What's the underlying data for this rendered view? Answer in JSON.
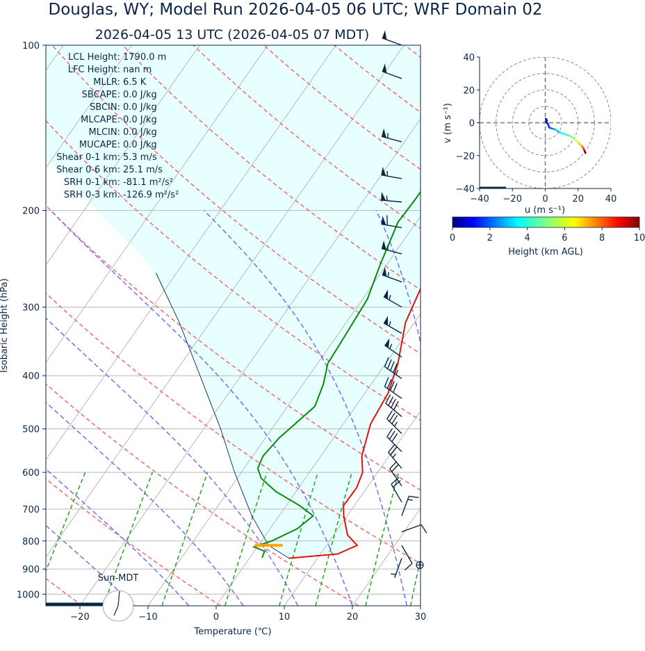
{
  "title": "Douglas, WY; Model Run 2026-04-05 06 UTC; WRF Domain 02",
  "subtitle": "2026-04-05 13 UTC  (2026-04-05 07 MDT)",
  "stats": [
    {
      "label": "LCL Height:",
      "value": "1790.0 m"
    },
    {
      "label": "LFC Height:",
      "value": "nan m"
    },
    {
      "label": "MLLR:",
      "value": "6.5 K"
    },
    {
      "label": "SBCAPE:",
      "value": "0.0 J/kg"
    },
    {
      "label": "SBCIN:",
      "value": "0.0 J/kg"
    },
    {
      "label": "MLCAPE:",
      "value": "0.0 J/kg"
    },
    {
      "label": "MLCIN:",
      "value": "0.0 J/kg"
    },
    {
      "label": "MUCAPE:",
      "value": "0.0 J/kg"
    },
    {
      "label": "Shear 0-1 km:",
      "value": "5.3 m/s"
    },
    {
      "label": "Shear 0-6 km:",
      "value": "25.1 m/s"
    },
    {
      "label": "SRH 0-1 km:",
      "value": "-81.1 m²/s²"
    },
    {
      "label": "SRH 0-3 km:",
      "value": "-126.9 m²/s²"
    }
  ],
  "sun_label": "Sun-MDT",
  "colors": {
    "temperature": "#e8100a",
    "dewpoint": "#0a8a0a",
    "parcel": "#0b2545",
    "dry_adiabat": "#f06a6a",
    "moist_adiabat": "#7070f0",
    "mixing_ratio": "#22a022",
    "isotherm": "#b8b8b8",
    "cape_fill": "#e8ffff",
    "lcl_marker": "#ffa500",
    "barb": "#0b2545"
  },
  "chart_data": [
    {
      "type": "line",
      "name": "skew-t",
      "xlabel": "Temperature (℃)",
      "ylabel": "Isobaric Height (hPa)",
      "xlim": [
        -25,
        30
      ],
      "ylim": [
        1050,
        100
      ],
      "x_ticks": [
        -20,
        -10,
        0,
        10,
        20,
        30
      ],
      "y_ticks": [
        100,
        200,
        300,
        400,
        500,
        600,
        700,
        800,
        900,
        1000
      ],
      "series": [
        {
          "key": "temperature",
          "points": [
            [
              860,
              5.8
            ],
            [
              845,
              12.5
            ],
            [
              815,
              14.5
            ],
            [
              780,
              12.0
            ],
            [
              720,
              9.5
            ],
            [
              690,
              8.4
            ],
            [
              640,
              8.5
            ],
            [
              600,
              7.8
            ],
            [
              560,
              6.0
            ],
            [
              490,
              4.0
            ],
            [
              430,
              3.4
            ],
            [
              380,
              1.8
            ],
            [
              320,
              -1.3
            ],
            [
              270,
              -2.8
            ],
            [
              245,
              -4.0
            ],
            [
              225,
              -6.2
            ],
            [
              210,
              -6.6
            ],
            [
              185,
              0.8
            ],
            [
              165,
              12.0
            ],
            [
              145,
              21.5
            ],
            [
              112,
              24.0
            ],
            [
              100,
              26.0
            ]
          ]
        },
        {
          "key": "dewpoint",
          "points": [
            [
              858,
              1.8
            ],
            [
              835,
              1.5
            ],
            [
              820,
              -0.5
            ],
            [
              800,
              1.5
            ],
            [
              760,
              4.0
            ],
            [
              720,
              5.0
            ],
            [
              690,
              2.0
            ],
            [
              650,
              -3.0
            ],
            [
              615,
              -6.5
            ],
            [
              590,
              -8.0
            ],
            [
              560,
              -8.5
            ],
            [
              520,
              -8.0
            ],
            [
              455,
              -6.0
            ],
            [
              415,
              -7.0
            ],
            [
              380,
              -8.5
            ],
            [
              340,
              -8.8
            ],
            [
              290,
              -9.3
            ],
            [
              250,
              -11.0
            ],
            [
              210,
              -12.7
            ],
            [
              190,
              -12.5
            ],
            [
              165,
              -12.5
            ],
            [
              145,
              -9.0
            ],
            [
              120,
              -4.0
            ],
            [
              100,
              1.5
            ]
          ]
        },
        {
          "key": "parcel",
          "points": [
            [
              860,
              5.8
            ],
            [
              815,
              1.5
            ],
            [
              720,
              -4.0
            ],
            [
              600,
              -11.0
            ],
            [
              500,
              -17.5
            ],
            [
              400,
              -26.0
            ],
            [
              320,
              -34.5
            ],
            [
              260,
              -43.0
            ]
          ]
        }
      ],
      "lcl_pressure": 815,
      "lcl_temperature": 1.5,
      "wind_barbs": [
        {
          "p": 100,
          "speed": 50,
          "dir": 290
        },
        {
          "p": 115,
          "speed": 50,
          "dir": 290
        },
        {
          "p": 150,
          "speed": 55,
          "dir": 285
        },
        {
          "p": 175,
          "speed": 55,
          "dir": 280
        },
        {
          "p": 193,
          "speed": 55,
          "dir": 275
        },
        {
          "p": 215,
          "speed": 60,
          "dir": 280
        },
        {
          "p": 240,
          "speed": 55,
          "dir": 285
        },
        {
          "p": 270,
          "speed": 55,
          "dir": 290
        },
        {
          "p": 300,
          "speed": 55,
          "dir": 300
        },
        {
          "p": 335,
          "speed": 55,
          "dir": 300
        },
        {
          "p": 370,
          "speed": 55,
          "dir": 305
        },
        {
          "p": 405,
          "speed": 45,
          "dir": 305
        },
        {
          "p": 440,
          "speed": 40,
          "dir": 305
        },
        {
          "p": 475,
          "speed": 40,
          "dir": 310
        },
        {
          "p": 510,
          "speed": 35,
          "dir": 315
        },
        {
          "p": 550,
          "speed": 30,
          "dir": 315
        },
        {
          "p": 590,
          "speed": 25,
          "dir": 320
        },
        {
          "p": 635,
          "speed": 20,
          "dir": 325
        },
        {
          "p": 680,
          "speed": 20,
          "dir": 330
        },
        {
          "p": 720,
          "speed": 15,
          "dir": 20
        },
        {
          "p": 770,
          "speed": 10,
          "dir": 70
        },
        {
          "p": 815,
          "speed": 10,
          "dir": 150
        },
        {
          "p": 860,
          "speed": 5,
          "dir": 200
        }
      ]
    },
    {
      "type": "line",
      "name": "hodograph",
      "xlabel": "u (m s⁻¹)",
      "ylabel": "v (m s⁻¹)",
      "xlim": [
        -40,
        40
      ],
      "ylim": [
        -40,
        40
      ],
      "x_ticks": [
        -40,
        -20,
        0,
        20,
        40
      ],
      "y_ticks": [
        -40,
        -20,
        0,
        20,
        40
      ],
      "rings": [
        10,
        20,
        30,
        40
      ],
      "points": [
        [
          0.3,
          2.5,
          0.0
        ],
        [
          1.0,
          1.5,
          0.3
        ],
        [
          0.5,
          0.5,
          0.6
        ],
        [
          1.5,
          -0.5,
          0.9
        ],
        [
          2.5,
          -3.0,
          1.3
        ],
        [
          4.0,
          -3.5,
          1.8
        ],
        [
          6.0,
          -4.0,
          2.4
        ],
        [
          9.0,
          -6.0,
          3.0
        ],
        [
          12.0,
          -7.0,
          3.6
        ],
        [
          15.0,
          -8.0,
          4.2
        ],
        [
          18.0,
          -10.0,
          5.0
        ],
        [
          20.5,
          -12.5,
          6.0
        ],
        [
          22.5,
          -14.5,
          7.0
        ],
        [
          23.5,
          -16.0,
          8.0
        ],
        [
          24.0,
          -17.5,
          9.0
        ],
        [
          24.5,
          -18.5,
          10.0
        ]
      ]
    },
    {
      "type": "heatmap",
      "name": "colorbar",
      "label": "Height (km AGL)",
      "range": [
        0,
        10
      ],
      "ticks": [
        0,
        2,
        4,
        6,
        8,
        10
      ]
    }
  ]
}
